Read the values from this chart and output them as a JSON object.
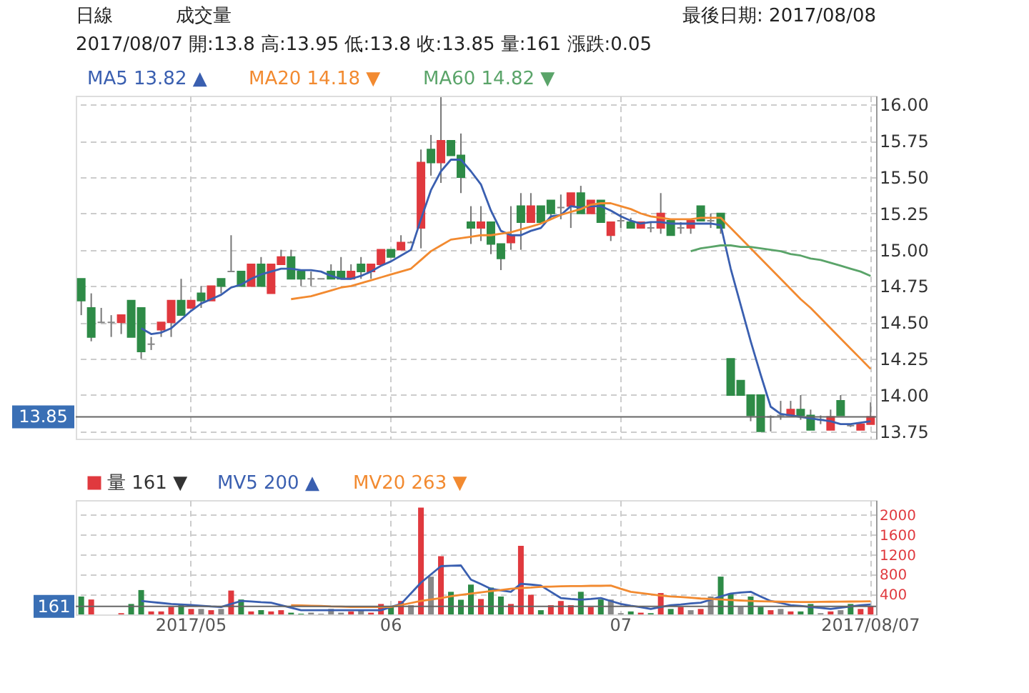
{
  "chart_data": [
    {
      "type": "candlestick",
      "categories": [
        null,
        null,
        null,
        null,
        null,
        null,
        null,
        null,
        null,
        null,
        null,
        "2017/05",
        null,
        null,
        null,
        null,
        null,
        null,
        null,
        null,
        null,
        null,
        null,
        null,
        null,
        null,
        null,
        null,
        null,
        null,
        null,
        "06",
        null,
        null,
        null,
        null,
        null,
        null,
        null,
        null,
        null,
        null,
        null,
        null,
        null,
        null,
        null,
        null,
        null,
        null,
        null,
        null,
        null,
        null,
        "07",
        null,
        null,
        null,
        null,
        null,
        null,
        null,
        null,
        null,
        null,
        null,
        null,
        null,
        null,
        null,
        null,
        null,
        null,
        null,
        null,
        null,
        null,
        null,
        null,
        "2017/08/07"
      ],
      "ohlc": [
        [
          14.8,
          14.8,
          14.55,
          14.65
        ],
        [
          14.6,
          14.7,
          14.37,
          14.4
        ],
        [
          14.5,
          14.6,
          14.5,
          14.5
        ],
        [
          14.5,
          14.55,
          14.4,
          14.5
        ],
        [
          14.5,
          14.55,
          14.42,
          14.55
        ],
        [
          14.65,
          14.65,
          14.4,
          14.4
        ],
        [
          14.6,
          14.6,
          14.25,
          14.3
        ],
        [
          14.35,
          14.4,
          14.31,
          14.35
        ],
        [
          14.45,
          14.5,
          14.4,
          14.5
        ],
        [
          14.5,
          14.65,
          14.4,
          14.65
        ],
        [
          14.65,
          14.8,
          14.55,
          14.55
        ],
        [
          14.6,
          14.65,
          14.6,
          14.65
        ],
        [
          14.7,
          14.75,
          14.6,
          14.65
        ],
        [
          14.65,
          14.75,
          14.65,
          14.75
        ],
        [
          14.8,
          14.8,
          14.7,
          14.75
        ],
        [
          14.85,
          15.1,
          14.85,
          14.85
        ],
        [
          14.85,
          14.85,
          14.75,
          14.75
        ],
        [
          14.75,
          14.9,
          14.75,
          14.9
        ],
        [
          14.9,
          14.95,
          14.75,
          14.75
        ],
        [
          14.7,
          14.9,
          14.7,
          14.9
        ],
        [
          14.9,
          15.0,
          14.9,
          14.95
        ],
        [
          14.95,
          15.0,
          14.8,
          14.8
        ],
        [
          14.85,
          14.85,
          14.75,
          14.8
        ],
        [
          14.8,
          14.85,
          14.75,
          14.8
        ],
        [
          14.8,
          14.8,
          14.8,
          14.8
        ],
        [
          14.85,
          14.9,
          14.8,
          14.8
        ],
        [
          14.85,
          14.95,
          14.8,
          14.8
        ],
        [
          14.8,
          14.9,
          14.8,
          14.85
        ],
        [
          14.9,
          14.95,
          14.8,
          14.85
        ],
        [
          14.85,
          14.9,
          14.8,
          14.9
        ],
        [
          14.9,
          15.0,
          14.9,
          15.0
        ],
        [
          15.0,
          15.0,
          14.95,
          14.95
        ],
        [
          15.0,
          15.1,
          15.0,
          15.05
        ],
        [
          15.05,
          15.06,
          15.05,
          15.05
        ],
        [
          15.15,
          15.69,
          15.01,
          15.6
        ],
        [
          15.69,
          15.79,
          15.51,
          15.6
        ],
        [
          15.6,
          16.05,
          15.46,
          15.75
        ],
        [
          15.75,
          15.75,
          15.65,
          15.65
        ],
        [
          15.65,
          15.8,
          15.39,
          15.5
        ],
        [
          15.19,
          15.3,
          15.04,
          15.15
        ],
        [
          15.15,
          15.3,
          15.06,
          15.19
        ],
        [
          15.19,
          15.19,
          14.97,
          15.04
        ],
        [
          15.04,
          15.04,
          14.86,
          14.94
        ],
        [
          15.05,
          15.3,
          15.0,
          15.1
        ],
        [
          15.3,
          15.39,
          15.0,
          15.19
        ],
        [
          15.19,
          15.39,
          15.19,
          15.3
        ],
        [
          15.3,
          15.3,
          15.19,
          15.19
        ],
        [
          15.34,
          15.34,
          15.21,
          15.25
        ],
        [
          15.29,
          15.38,
          15.21,
          15.29
        ],
        [
          15.3,
          15.39,
          15.15,
          15.39
        ],
        [
          15.39,
          15.44,
          15.25,
          15.25
        ],
        [
          15.25,
          15.34,
          15.25,
          15.34
        ],
        [
          15.34,
          15.34,
          15.19,
          15.19
        ],
        [
          15.1,
          15.19,
          15.06,
          15.19
        ],
        [
          15.2,
          15.25,
          15.15,
          15.2
        ],
        [
          15.19,
          15.22,
          15.15,
          15.15
        ],
        [
          15.15,
          15.19,
          15.15,
          15.19
        ],
        [
          15.15,
          15.19,
          15.12,
          15.15
        ],
        [
          15.15,
          15.39,
          15.11,
          15.25
        ],
        [
          15.2,
          15.2,
          15.1,
          15.1
        ],
        [
          15.15,
          15.19,
          15.11,
          15.15
        ],
        [
          15.15,
          15.2,
          15.11,
          15.2
        ],
        [
          15.3,
          15.3,
          15.2,
          15.2
        ],
        [
          15.2,
          15.25,
          15.15,
          15.2
        ],
        [
          15.25,
          15.25,
          15.11,
          15.15
        ],
        [
          14.25,
          14.25,
          14.0,
          14.0
        ],
        [
          14.1,
          14.1,
          14.0,
          14.0
        ],
        [
          14.0,
          14.0,
          13.82,
          13.86
        ],
        [
          14.0,
          14.0,
          13.75,
          13.75
        ],
        [
          13.85,
          13.86,
          13.75,
          13.85
        ],
        [
          13.86,
          13.96,
          13.83,
          13.86
        ],
        [
          13.86,
          13.96,
          13.86,
          13.9
        ],
        [
          13.9,
          14.0,
          13.83,
          13.86
        ],
        [
          13.86,
          13.9,
          13.76,
          13.76
        ],
        [
          13.83,
          13.86,
          13.8,
          13.83
        ],
        [
          13.76,
          13.9,
          13.76,
          13.85
        ],
        [
          13.96,
          14.0,
          13.86,
          13.86
        ],
        [
          13.79,
          13.8,
          13.78,
          13.79
        ],
        [
          13.76,
          13.8,
          13.76,
          13.8
        ],
        [
          13.8,
          13.95,
          13.8,
          13.85
        ]
      ],
      "colors": [
        "#2e8b47",
        "#2e8b47",
        "#888888",
        "#888888",
        "#e0393e",
        "#2e8b47",
        "#2e8b47",
        "#888888",
        "#e0393e",
        "#e0393e",
        "#2e8b47",
        "#e0393e",
        "#2e8b47",
        "#e0393e",
        "#2e8b47",
        "#888888",
        "#2e8b47",
        "#e0393e",
        "#2e8b47",
        "#e0393e",
        "#e0393e",
        "#2e8b47",
        "#2e8b47",
        "#888888",
        "#888888",
        "#2e8b47",
        "#2e8b47",
        "#e0393e",
        "#2e8b47",
        "#e0393e",
        "#e0393e",
        "#2e8b47",
        "#e0393e",
        "#888888",
        "#e0393e",
        "#2e8b47",
        "#e0393e",
        "#2e8b47",
        "#2e8b47",
        "#2e8b47",
        "#e0393e",
        "#2e8b47",
        "#2e8b47",
        "#e0393e",
        "#2e8b47",
        "#e0393e",
        "#2e8b47",
        "#2e8b47",
        "#888888",
        "#e0393e",
        "#2e8b47",
        "#e0393e",
        "#2e8b47",
        "#e0393e",
        "#888888",
        "#2e8b47",
        "#e0393e",
        "#888888",
        "#e0393e",
        "#2e8b47",
        "#888888",
        "#e0393e",
        "#2e8b47",
        "#888888",
        "#2e8b47",
        "#2e8b47",
        "#2e8b47",
        "#2e8b47",
        "#2e8b47",
        "#888888",
        "#888888",
        "#e0393e",
        "#2e8b47",
        "#2e8b47",
        "#888888",
        "#e0393e",
        "#2e8b47",
        "#888888",
        "#e0393e",
        "#e0393e"
      ],
      "series": [
        {
          "name": "MA5 13.82 ▲",
          "type": "line",
          "color": "#3a5fb0",
          "values": [
            null,
            null,
            null,
            null,
            null,
            null,
            14.46,
            14.42,
            14.43,
            14.46,
            14.52,
            14.58,
            14.63,
            14.66,
            14.69,
            14.74,
            14.76,
            14.8,
            14.83,
            14.85,
            14.87,
            14.87,
            14.86,
            14.86,
            14.85,
            14.82,
            14.8,
            14.8,
            14.82,
            14.85,
            14.89,
            14.92,
            14.96,
            15.0,
            15.21,
            15.41,
            15.54,
            15.62,
            15.62,
            15.54,
            15.45,
            15.27,
            15.13,
            15.1,
            15.1,
            15.13,
            15.15,
            15.23,
            15.24,
            15.3,
            15.29,
            15.3,
            15.3,
            15.27,
            15.23,
            15.2,
            15.18,
            15.19,
            15.19,
            15.18,
            15.18,
            15.18,
            15.18,
            15.18,
            15.17,
            14.87,
            14.62,
            14.37,
            14.14,
            13.92,
            13.87,
            13.86,
            13.85,
            13.84,
            13.83,
            13.82,
            13.8,
            13.8,
            13.81,
            13.82
          ]
        },
        {
          "name": "MA20 14.18 ▼",
          "type": "line",
          "color": "#f28a30",
          "values": [
            null,
            null,
            null,
            null,
            null,
            null,
            null,
            null,
            null,
            null,
            null,
            null,
            null,
            null,
            null,
            null,
            null,
            null,
            null,
            null,
            null,
            14.66,
            14.67,
            14.68,
            14.7,
            14.72,
            14.74,
            14.75,
            14.77,
            14.79,
            14.81,
            14.83,
            14.85,
            14.87,
            14.93,
            14.99,
            15.03,
            15.07,
            15.08,
            15.09,
            15.1,
            15.1,
            15.11,
            15.12,
            15.14,
            15.16,
            15.18,
            15.21,
            15.24,
            15.26,
            15.28,
            15.31,
            15.32,
            15.32,
            15.3,
            15.28,
            15.25,
            15.23,
            15.22,
            15.21,
            15.21,
            15.21,
            15.22,
            15.22,
            15.22,
            15.15,
            15.08,
            15.01,
            14.94,
            14.87,
            14.8,
            14.73,
            14.66,
            14.6,
            14.53,
            14.46,
            14.39,
            14.32,
            14.25,
            14.18
          ]
        },
        {
          "name": "MA60 14.82 ▼",
          "type": "line",
          "color": "#5aa469",
          "values": [
            null,
            null,
            null,
            null,
            null,
            null,
            null,
            null,
            null,
            null,
            null,
            null,
            null,
            null,
            null,
            null,
            null,
            null,
            null,
            null,
            null,
            null,
            null,
            null,
            null,
            null,
            null,
            null,
            null,
            null,
            null,
            null,
            null,
            null,
            null,
            null,
            null,
            null,
            null,
            null,
            null,
            null,
            null,
            null,
            null,
            null,
            null,
            null,
            null,
            null,
            null,
            null,
            null,
            null,
            null,
            null,
            null,
            null,
            null,
            null,
            null,
            14.99,
            15.01,
            15.02,
            15.03,
            15.03,
            15.02,
            15.02,
            15.01,
            15.0,
            14.99,
            14.97,
            14.96,
            14.94,
            14.93,
            14.91,
            14.89,
            14.87,
            14.85,
            14.82
          ]
        }
      ],
      "ylim": [
        13.7,
        16.06
      ],
      "yticks": [
        {
          "value": 13.75,
          "label": "13.75"
        },
        {
          "value": 14,
          "label": "14.00"
        },
        {
          "value": 14.25,
          "label": "14.25"
        },
        {
          "value": 14.5,
          "label": "14.50"
        },
        {
          "value": 14.75,
          "label": "14.75"
        },
        {
          "value": 15,
          "label": "15.00"
        },
        {
          "value": 15.25,
          "label": "15.25"
        },
        {
          "value": 15.5,
          "label": "15.50"
        },
        {
          "value": 15.75,
          "label": "15.75"
        },
        {
          "value": 16,
          "label": "16.00"
        }
      ],
      "ref_lines": [
        {
          "axis": "y",
          "value": 13.85,
          "label": "13.85"
        }
      ],
      "annotations": [
        "日線",
        "成交量",
        "最後日期: 2017/08/08",
        "2017/08/07 開:13.8 高:13.95 低:13.8 收:13.85 量:161 漲跌:0.05"
      ],
      "tick_labels": "y",
      "grid": true,
      "legend": "top left"
    },
    {
      "type": "bar",
      "categories": [
        null,
        null,
        null,
        null,
        null,
        null,
        null,
        null,
        null,
        null,
        null,
        "2017/05",
        null,
        null,
        null,
        null,
        null,
        null,
        null,
        null,
        null,
        null,
        null,
        null,
        null,
        null,
        null,
        null,
        null,
        null,
        null,
        "06",
        null,
        null,
        null,
        null,
        null,
        null,
        null,
        null,
        null,
        null,
        null,
        null,
        null,
        null,
        null,
        null,
        null,
        null,
        null,
        null,
        null,
        null,
        "07",
        null,
        null,
        null,
        null,
        null,
        null,
        null,
        null,
        null,
        null,
        null,
        null,
        null,
        null,
        null,
        null,
        null,
        null,
        null,
        null,
        null,
        null,
        null,
        null,
        "2017/08/07"
      ],
      "series": [
        {
          "name": "量 161 ▼",
          "type": "bar",
          "values": [
            360,
            300,
            null,
            null,
            25,
            210,
            490,
            60,
            60,
            150,
            185,
            110,
            110,
            85,
            110,
            480,
            300,
            60,
            85,
            60,
            85,
            35,
            15,
            35,
            15,
            110,
            35,
            60,
            85,
            35,
            210,
            150,
            270,
            185,
            2150,
            760,
            1170,
            455,
            295,
            600,
            310,
            540,
            360,
            210,
            1380,
            395,
            85,
            185,
            270,
            185,
            455,
            150,
            300,
            300,
            25,
            60,
            35,
            25,
            430,
            110,
            150,
            85,
            110,
            360,
            760,
            420,
            150,
            360,
            150,
            85,
            110,
            60,
            60,
            210,
            25,
            60,
            85,
            210,
            110,
            161
          ],
          "colors": [
            "#2e8b47",
            "#e0393e",
            null,
            null,
            "#e0393e",
            "#2e8b47",
            "#2e8b47",
            "#e0393e",
            "#e0393e",
            "#e0393e",
            "#2e8b47",
            "#e0393e",
            "#888888",
            "#e0393e",
            "#888888",
            "#e0393e",
            "#2e8b47",
            "#e0393e",
            "#2e8b47",
            "#e0393e",
            "#e0393e",
            "#2e8b47",
            "#2e8b47",
            "#888888",
            "#888888",
            "#888888",
            "#888888",
            "#e0393e",
            "#888888",
            "#e0393e",
            "#e0393e",
            "#2e8b47",
            "#e0393e",
            "#888888",
            "#e0393e",
            "#888888",
            "#e0393e",
            "#2e8b47",
            "#2e8b47",
            "#2e8b47",
            "#e0393e",
            "#2e8b47",
            "#2e8b47",
            "#e0393e",
            "#e0393e",
            "#e0393e",
            "#2e8b47",
            "#e0393e",
            "#e0393e",
            "#e0393e",
            "#2e8b47",
            "#e0393e",
            "#2e8b47",
            "#888888",
            "#888888",
            "#2e8b47",
            "#e0393e",
            "#2e8b47",
            "#e0393e",
            "#2e8b47",
            "#e0393e",
            "#888888",
            "#e0393e",
            "#888888",
            "#2e8b47",
            "#2e8b47",
            "#888888",
            "#2e8b47",
            "#2e8b47",
            "#e0393e",
            "#888888",
            "#e0393e",
            "#2e8b47",
            "#2e8b47",
            "#888888",
            "#e0393e",
            "#888888",
            "#2e8b47",
            "#e0393e",
            "#e0393e"
          ]
        },
        {
          "name": "MV5 200 ▲",
          "type": "line",
          "color": "#3a5fb0",
          "values": [
            null,
            null,
            null,
            null,
            null,
            null,
            270,
            250,
            230,
            210,
            200,
            190,
            175,
            160,
            150,
            210,
            270,
            260,
            245,
            235,
            185,
            135,
            85,
            85,
            85,
            85,
            85,
            85,
            85,
            85,
            85,
            150,
            210,
            425,
            640,
            805,
            970,
            980,
            985,
            700,
            610,
            515,
            485,
            455,
            615,
            600,
            580,
            455,
            330,
            310,
            295,
            310,
            330,
            270,
            210,
            175,
            145,
            110,
            150,
            185,
            200,
            220,
            235,
            295,
            360,
            420,
            440,
            455,
            360,
            270,
            230,
            185,
            170,
            150,
            130,
            110,
            135,
            160,
            185,
            200
          ]
        },
        {
          "name": "MV20 263 ▼",
          "type": "line",
          "color": "#f28a30",
          "values": [
            null,
            null,
            null,
            null,
            null,
            null,
            null,
            null,
            null,
            null,
            null,
            null,
            null,
            null,
            null,
            null,
            null,
            null,
            null,
            null,
            null,
            185,
            180,
            175,
            170,
            160,
            155,
            150,
            150,
            150,
            150,
            150,
            190,
            230,
            270,
            300,
            330,
            365,
            395,
            420,
            445,
            470,
            490,
            515,
            530,
            540,
            555,
            560,
            565,
            570,
            570,
            575,
            575,
            580,
            515,
            455,
            430,
            405,
            380,
            360,
            350,
            335,
            320,
            310,
            300,
            290,
            280,
            270,
            265,
            260,
            255,
            252,
            250,
            250,
            252,
            255,
            257,
            259,
            261,
            263
          ]
        }
      ],
      "ylim": [
        0,
        2300
      ],
      "yticks": [
        400,
        800,
        1200,
        1600,
        2000
      ],
      "ref_lines": [
        {
          "axis": "y",
          "value": 161,
          "label": "161"
        }
      ],
      "grid": true,
      "legend": "top left"
    }
  ]
}
